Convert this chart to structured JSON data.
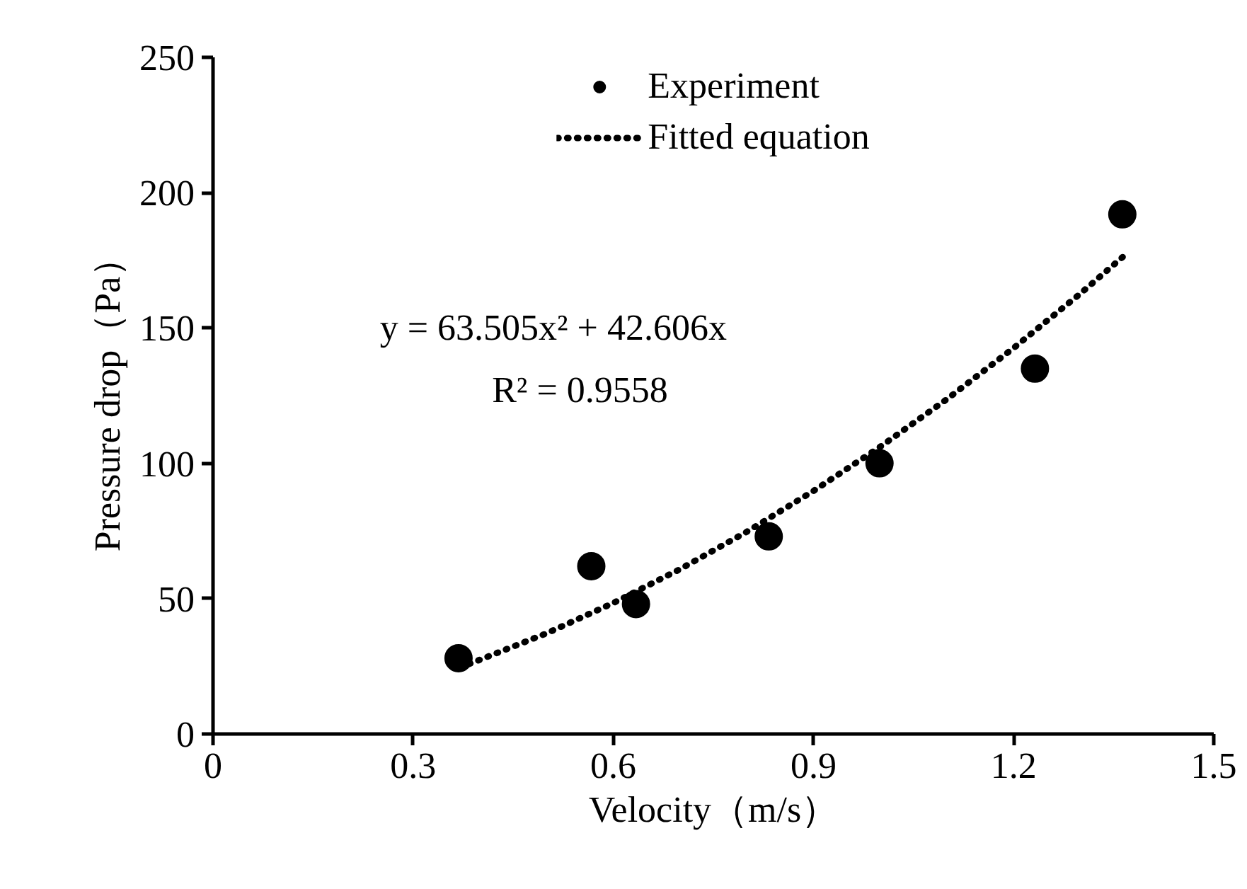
{
  "chart_data": {
    "type": "scatter",
    "xlabel": "Velocity（m/s）",
    "ylabel": "Pressure drop（Pa）",
    "xlim": [
      0,
      1.5
    ],
    "xticks": [
      0,
      0.3,
      0.6,
      0.9,
      1.2,
      1.5
    ],
    "ylim": [
      0,
      250
    ],
    "yticks": [
      0,
      50,
      100,
      150,
      200,
      250
    ],
    "grid": false,
    "legend": "top",
    "series": [
      {
        "name": "Experiment",
        "marker": "circle",
        "color": "#000000",
        "x": [
          0.368,
          0.567,
          0.634,
          0.833,
          0.999,
          1.232,
          1.363
        ],
        "values": [
          28,
          62,
          48,
          73,
          100,
          135,
          192
        ]
      },
      {
        "name": "Fitted equation",
        "type": "line",
        "line_style": "dotted",
        "color": "#000000",
        "x": [
          0.37,
          0.5,
          0.6,
          0.7,
          0.8,
          0.9,
          1.0,
          1.1,
          1.2,
          1.3,
          1.37
        ],
        "values": [
          24.5,
          37.2,
          48.4,
          60.9,
          74.7,
          89.8,
          106.1,
          123.7,
          142.6,
          162.7,
          177.6
        ]
      }
    ],
    "annotations": [
      "y = 63.505x² + 42.606x",
      "R² = 0.9558"
    ]
  }
}
